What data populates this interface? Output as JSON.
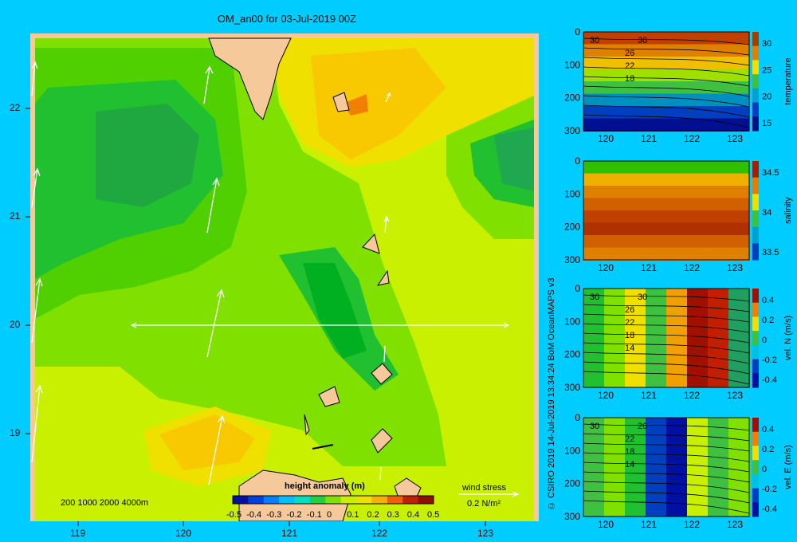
{
  "title": "OM_an00 for 03-Jul-2019 00Z",
  "map": {
    "lon_ticks": [
      "119",
      "120",
      "121",
      "122",
      "123"
    ],
    "lat_ticks": [
      "22",
      "21",
      "20",
      "19"
    ],
    "depth_legend": "200  1000  2000  4000m",
    "colorbar_title": "height anomaly  (m)",
    "colorbar_ticks": [
      "-0.5",
      "-0.4",
      "-0.3",
      "-0.2",
      "-0.1",
      "0",
      "0.1",
      "0.2",
      "0.3",
      "0.4",
      "0.5"
    ],
    "wind_label": "wind stress",
    "wind_scale": "0.2 N/m²",
    "section_lat": 20
  },
  "panels": [
    {
      "name": "temperature",
      "y_ticks": [
        "0",
        "100",
        "200",
        "300"
      ],
      "x_ticks": [
        "120",
        "121",
        "122",
        "123"
      ],
      "cbar_ticks": [
        "30",
        "25",
        "20",
        "15"
      ],
      "contour_labels": [
        "30",
        "30",
        "26",
        "22",
        "18"
      ]
    },
    {
      "name": "salinity",
      "y_ticks": [
        "0",
        "100",
        "200",
        "300"
      ],
      "x_ticks": [
        "120",
        "121",
        "122",
        "123"
      ],
      "cbar_ticks": [
        "34.5",
        "34",
        "33.5"
      ],
      "contour_labels": []
    },
    {
      "name": "vel. N (m/s)",
      "y_ticks": [
        "0",
        "100",
        "200",
        "300"
      ],
      "x_ticks": [
        "120",
        "121",
        "122",
        "123"
      ],
      "cbar_ticks": [
        "0.4",
        "0.2",
        "0",
        "-0.2",
        "-0.4"
      ],
      "contour_labels": [
        "30",
        "30",
        "26",
        "22",
        "18",
        "14"
      ]
    },
    {
      "name": "vel. E (m/s)",
      "y_ticks": [
        "0",
        "100",
        "200",
        "300"
      ],
      "x_ticks": [
        "120",
        "121",
        "122",
        "123"
      ],
      "cbar_ticks": [
        "0.4",
        "0.2",
        "0",
        "-0.2",
        "-0.4"
      ],
      "contour_labels": [
        "30",
        "26",
        "22",
        "18",
        "14"
      ]
    }
  ],
  "side_credit": "© CSIRO 2019   14-Jul-2019 13:34:24 BoM OceanMAPS v3"
}
